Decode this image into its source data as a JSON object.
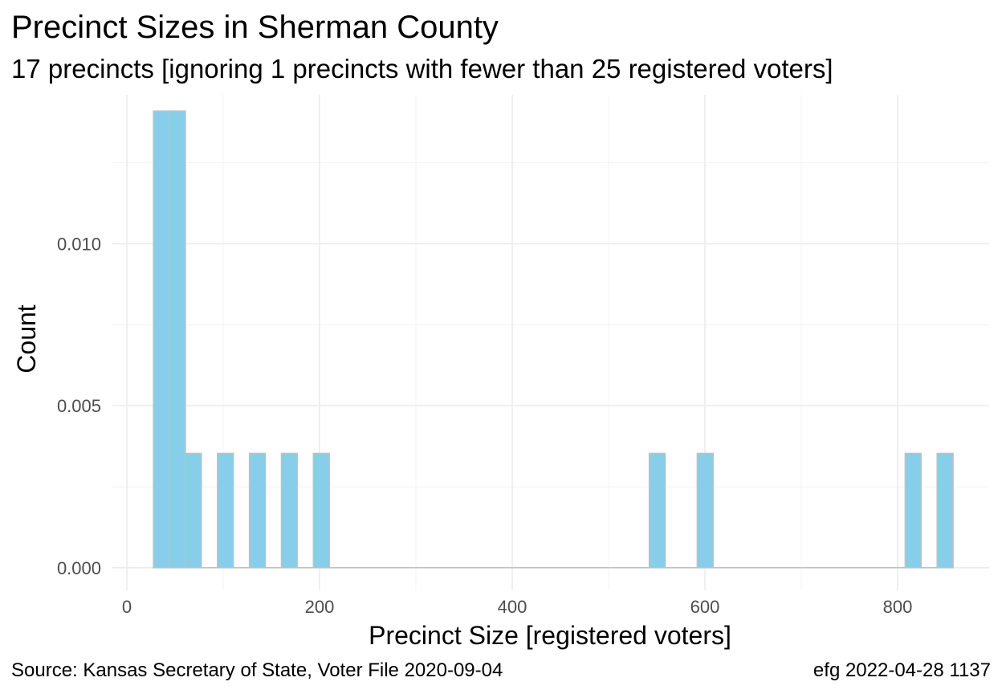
{
  "chart_data": {
    "type": "bar",
    "title": "Precinct Sizes in Sherman County",
    "subtitle": "17 precincts [ignoring 1 precincts with fewer than 25 registered voters]",
    "xlabel": "Precinct Size [registered voters]",
    "ylabel": "Count",
    "caption_left": "Source:  Kansas Secretary of State, Voter File  2020-09-04",
    "caption_right": "efg 2022-04-28 1137",
    "xlim": [
      -15,
      895
    ],
    "ylim": [
      -0.0007,
      0.0146
    ],
    "x_ticks": [
      0,
      200,
      400,
      600,
      800
    ],
    "x_tick_labels": [
      "0",
      "200",
      "400",
      "600",
      "800"
    ],
    "y_ticks": [
      0.0,
      0.005,
      0.01
    ],
    "y_tick_labels": [
      "0.000",
      "0.005",
      "0.010"
    ],
    "grid": true,
    "legend": "none",
    "bin_width": 16.6,
    "bars": [
      {
        "center": 35.9,
        "value": 0.0141
      },
      {
        "center": 52.5,
        "value": 0.0141
      },
      {
        "center": 69.1,
        "value": 0.00353
      },
      {
        "center": 102.3,
        "value": 0.00353
      },
      {
        "center": 135.5,
        "value": 0.00353
      },
      {
        "center": 168.7,
        "value": 0.00353
      },
      {
        "center": 201.9,
        "value": 0.00353
      },
      {
        "center": 550.5,
        "value": 0.00353
      },
      {
        "center": 600.3,
        "value": 0.00353
      },
      {
        "center": 816.1,
        "value": 0.00353
      },
      {
        "center": 849.3,
        "value": 0.00353
      }
    ],
    "colors": {
      "bar_fill": "#87ceeb",
      "bar_outline": "#c0c0c0",
      "grid": "#ebebeb",
      "tick_text": "#4d4d4d"
    }
  }
}
